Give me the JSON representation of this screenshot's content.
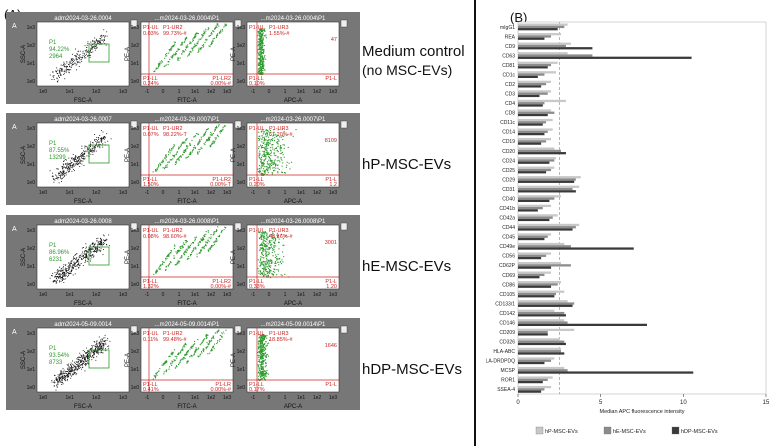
{
  "panel_a": {
    "label": "(A)",
    "rows": [
      {
        "name": "Medium control",
        "name2": "(no MSC-EVs)",
        "plots": [
          {
            "letter": "A",
            "title": "adm2024-03-26.0004",
            "xlabel": "FSC-A",
            "ylabel": "SSC-A",
            "gate": "P1",
            "stat1": "94.22%",
            "stat2": "2964"
          },
          {
            "letter": "B",
            "title": "...m2024-03-26.0004\\P1",
            "xlabel": "FITC-A",
            "ylabel": "PE-A",
            "ul": "P1-UL",
            "ur": "P1-UR2",
            "ulstat": "0.03%",
            "urstat": "99.73%-#",
            "ll": "P1-LL",
            "lr": "P1-LR2",
            "llstat": "0.24%",
            "lrstat": "0.00%-#"
          },
          {
            "letter": "C",
            "title": "...m2024-03-26.0004\\P1",
            "xlabel": "APC-A",
            "ylabel": "PE-A",
            "ul": "P1-UL",
            "ur": "P1-UR3",
            "ulstat": "",
            "urstat": "1.55%-#",
            "urcount": "47",
            "ll": "P1-LL",
            "lr": "P1-L",
            "llstat": "0.10%",
            "lrstat": ""
          }
        ]
      },
      {
        "name": "hP-MSC-EVs",
        "name2": "",
        "plots": [
          {
            "letter": "A",
            "title": "adm2024-03-26.0007",
            "xlabel": "FSC-A",
            "ylabel": "SSC-A",
            "gate": "P1",
            "stat1": "87.55%",
            "stat2": "13299"
          },
          {
            "letter": "B",
            "title": "...m2024-03-26.0007\\P1",
            "xlabel": "FITC-A",
            "ylabel": "PE-A",
            "ul": "P1-UL",
            "ur": "P1-UR2",
            "ulstat": "0.07%",
            "urstat": "98.22%-T",
            "ll": "P1-LL",
            "lr": "P1-LR2",
            "llstat": "1.50%",
            "lrstat": "0.00%-T"
          },
          {
            "letter": "C",
            "title": "...m2024-03-26.0007\\P1",
            "xlabel": "APC-A",
            "ylabel": "PE-A",
            "ul": "P1-UL",
            "ur": "P1-UR3",
            "ulstat": "",
            "urstat": "61.20%-#",
            "urcount": "8109",
            "ll": "P1-LL",
            "lr": "P1-L",
            "llstat": "0.20%",
            "lrstat": "1.2"
          }
        ]
      },
      {
        "name": "hE-MSC-EVs",
        "name2": "",
        "plots": [
          {
            "letter": "A",
            "title": "adm2024-03-26.0008",
            "xlabel": "FSC-A",
            "ylabel": "SSC-A",
            "gate": "P1",
            "stat1": "86.96%",
            "stat2": "6231"
          },
          {
            "letter": "B",
            "title": "...m2024-03-26.0008\\P1",
            "xlabel": "FITC-A",
            "ylabel": "PE-A",
            "ul": "P1-UL",
            "ur": "P1-UR2",
            "ulstat": "0.08%",
            "urstat": "98.60%-#",
            "ll": "P1-LL",
            "lr": "P1-LR2",
            "llstat": "1.32%",
            "lrstat": "0.00%-#"
          },
          {
            "letter": "C",
            "title": "...m2024-03-26.0008\\P1",
            "xlabel": "APC-A",
            "ylabel": "PE-A",
            "ul": "P1-UL",
            "ur": "P1-UR3",
            "ulstat": "",
            "urstat": "48.16%-#",
            "urcount": "3001",
            "ll": "P1-LL",
            "lr": "P1-L",
            "llstat": "0.33%",
            "lrstat": "1.20"
          }
        ]
      },
      {
        "name": "hDP-MSC-EVs",
        "name2": "",
        "plots": [
          {
            "letter": "A",
            "title": "adm2024-05-09.0014",
            "xlabel": "FSC-A",
            "ylabel": "SSC-A",
            "gate": "P1",
            "stat1": "93.54%",
            "stat2": "8733"
          },
          {
            "letter": "B",
            "title": "...m2024-05-09.0014\\P1",
            "xlabel": "FITC-A",
            "ylabel": "PE-A",
            "ul": "P1-UL",
            "ur": "P1-UR2",
            "ulstat": "0.11%",
            "urstat": "99.48%-#",
            "ll": "P1-LL",
            "lr": "P1-LR",
            "llstat": "0.41%",
            "lrstat": "0.00%-#"
          },
          {
            "letter": "C",
            "title": "...m2024-05-09.0014\\P1",
            "xlabel": "APC-A",
            "ylabel": "PE-A",
            "ul": "P1-UL",
            "ur": "P1-UR3",
            "ulstat": "",
            "urstat": "18.85%-#",
            "urcount": "1646",
            "ll": "P1-LL",
            "lr": "P1-L",
            "llstat": "0.17%",
            "lrstat": ""
          }
        ]
      }
    ],
    "axis_ticks_log": [
      "1e0",
      "1e1",
      "1e2",
      "1e3"
    ],
    "axis_ticks_biex": [
      "-1",
      "0",
      "1",
      "1e1",
      "1e2",
      "1e3"
    ],
    "colors": {
      "panel_bg": "#777777",
      "plot_bg": "#ffffff",
      "events": "#111111",
      "gated": "#2e9a2e",
      "gate_line": "#2a9a2a",
      "quadrant_line": "#cc2222",
      "quadrant_text": "#cc2222"
    }
  },
  "chart_data": {
    "type": "bar",
    "panel_label": "(B)",
    "orientation": "horizontal",
    "title": "",
    "xlabel": "Median APC fluorescence intensity",
    "ylabel": "",
    "xlim": [
      0,
      15
    ],
    "xticks": [
      "0",
      "5",
      "10",
      "15"
    ],
    "reference_line": 2.5,
    "categories": [
      "mIgG1",
      "REA",
      "CD9",
      "CD63",
      "CD81",
      "CD1c",
      "CD2",
      "CD3",
      "CD4",
      "CD8",
      "CD11c",
      "CD14",
      "CD19",
      "CD20",
      "CD24",
      "CD25",
      "CD29",
      "CD31",
      "CD40",
      "CD41b",
      "CD42a",
      "CD44",
      "CD45",
      "CD49e",
      "CD56",
      "CD62P",
      "CD69",
      "CD86",
      "CD105",
      "CD133/1",
      "CD142",
      "CD146",
      "CD209",
      "CD326",
      "HLA-ABC",
      "HLA-DRDPDQ",
      "MCSP",
      "ROR1",
      "SSEA-4"
    ],
    "series": [
      {
        "name": "hP-MSC-EVs",
        "color": "#c8c8c8",
        "values": [
          3.0,
          2.6,
          3.2,
          3.0,
          2.4,
          2.3,
          2.0,
          2.0,
          2.9,
          2.0,
          2.1,
          2.1,
          2.0,
          2.2,
          2.3,
          2.2,
          3.8,
          3.7,
          2.6,
          2.0,
          2.4,
          3.7,
          2.0,
          2.8,
          2.0,
          2.6,
          2.0,
          2.6,
          2.8,
          3.0,
          2.2,
          2.8,
          3.4,
          2.5,
          2.6,
          2.2,
          2.8,
          2.1,
          2.0
        ]
      },
      {
        "name": "hE-MSC-EVs",
        "color": "#8c8c8c",
        "values": [
          2.8,
          2.0,
          2.9,
          4.5,
          2.0,
          1.6,
          1.7,
          1.8,
          1.6,
          2.2,
          1.7,
          1.8,
          1.7,
          2.6,
          2.2,
          2.0,
          3.5,
          3.3,
          2.2,
          1.5,
          2.1,
          3.5,
          1.8,
          3.2,
          1.7,
          3.2,
          1.6,
          2.4,
          2.3,
          3.4,
          2.8,
          3.0,
          1.8,
          2.8,
          2.6,
          2.0,
          3.0,
          1.8,
          1.6
        ]
      },
      {
        "name": "hDP-MSC-EVs",
        "color": "#3a3a3a",
        "values": [
          2.4,
          1.6,
          4.5,
          10.5,
          1.8,
          1.2,
          1.4,
          1.3,
          1.5,
          1.8,
          1.5,
          1.6,
          1.4,
          2.9,
          1.9,
          1.7,
          3.4,
          3.5,
          1.9,
          1.2,
          1.9,
          3.3,
          1.6,
          7.0,
          1.4,
          2.0,
          1.3,
          2.0,
          2.2,
          3.3,
          2.9,
          7.8,
          1.8,
          2.9,
          2.8,
          1.6,
          10.6,
          1.5,
          1.4
        ]
      }
    ],
    "legend_position": "bottom"
  }
}
